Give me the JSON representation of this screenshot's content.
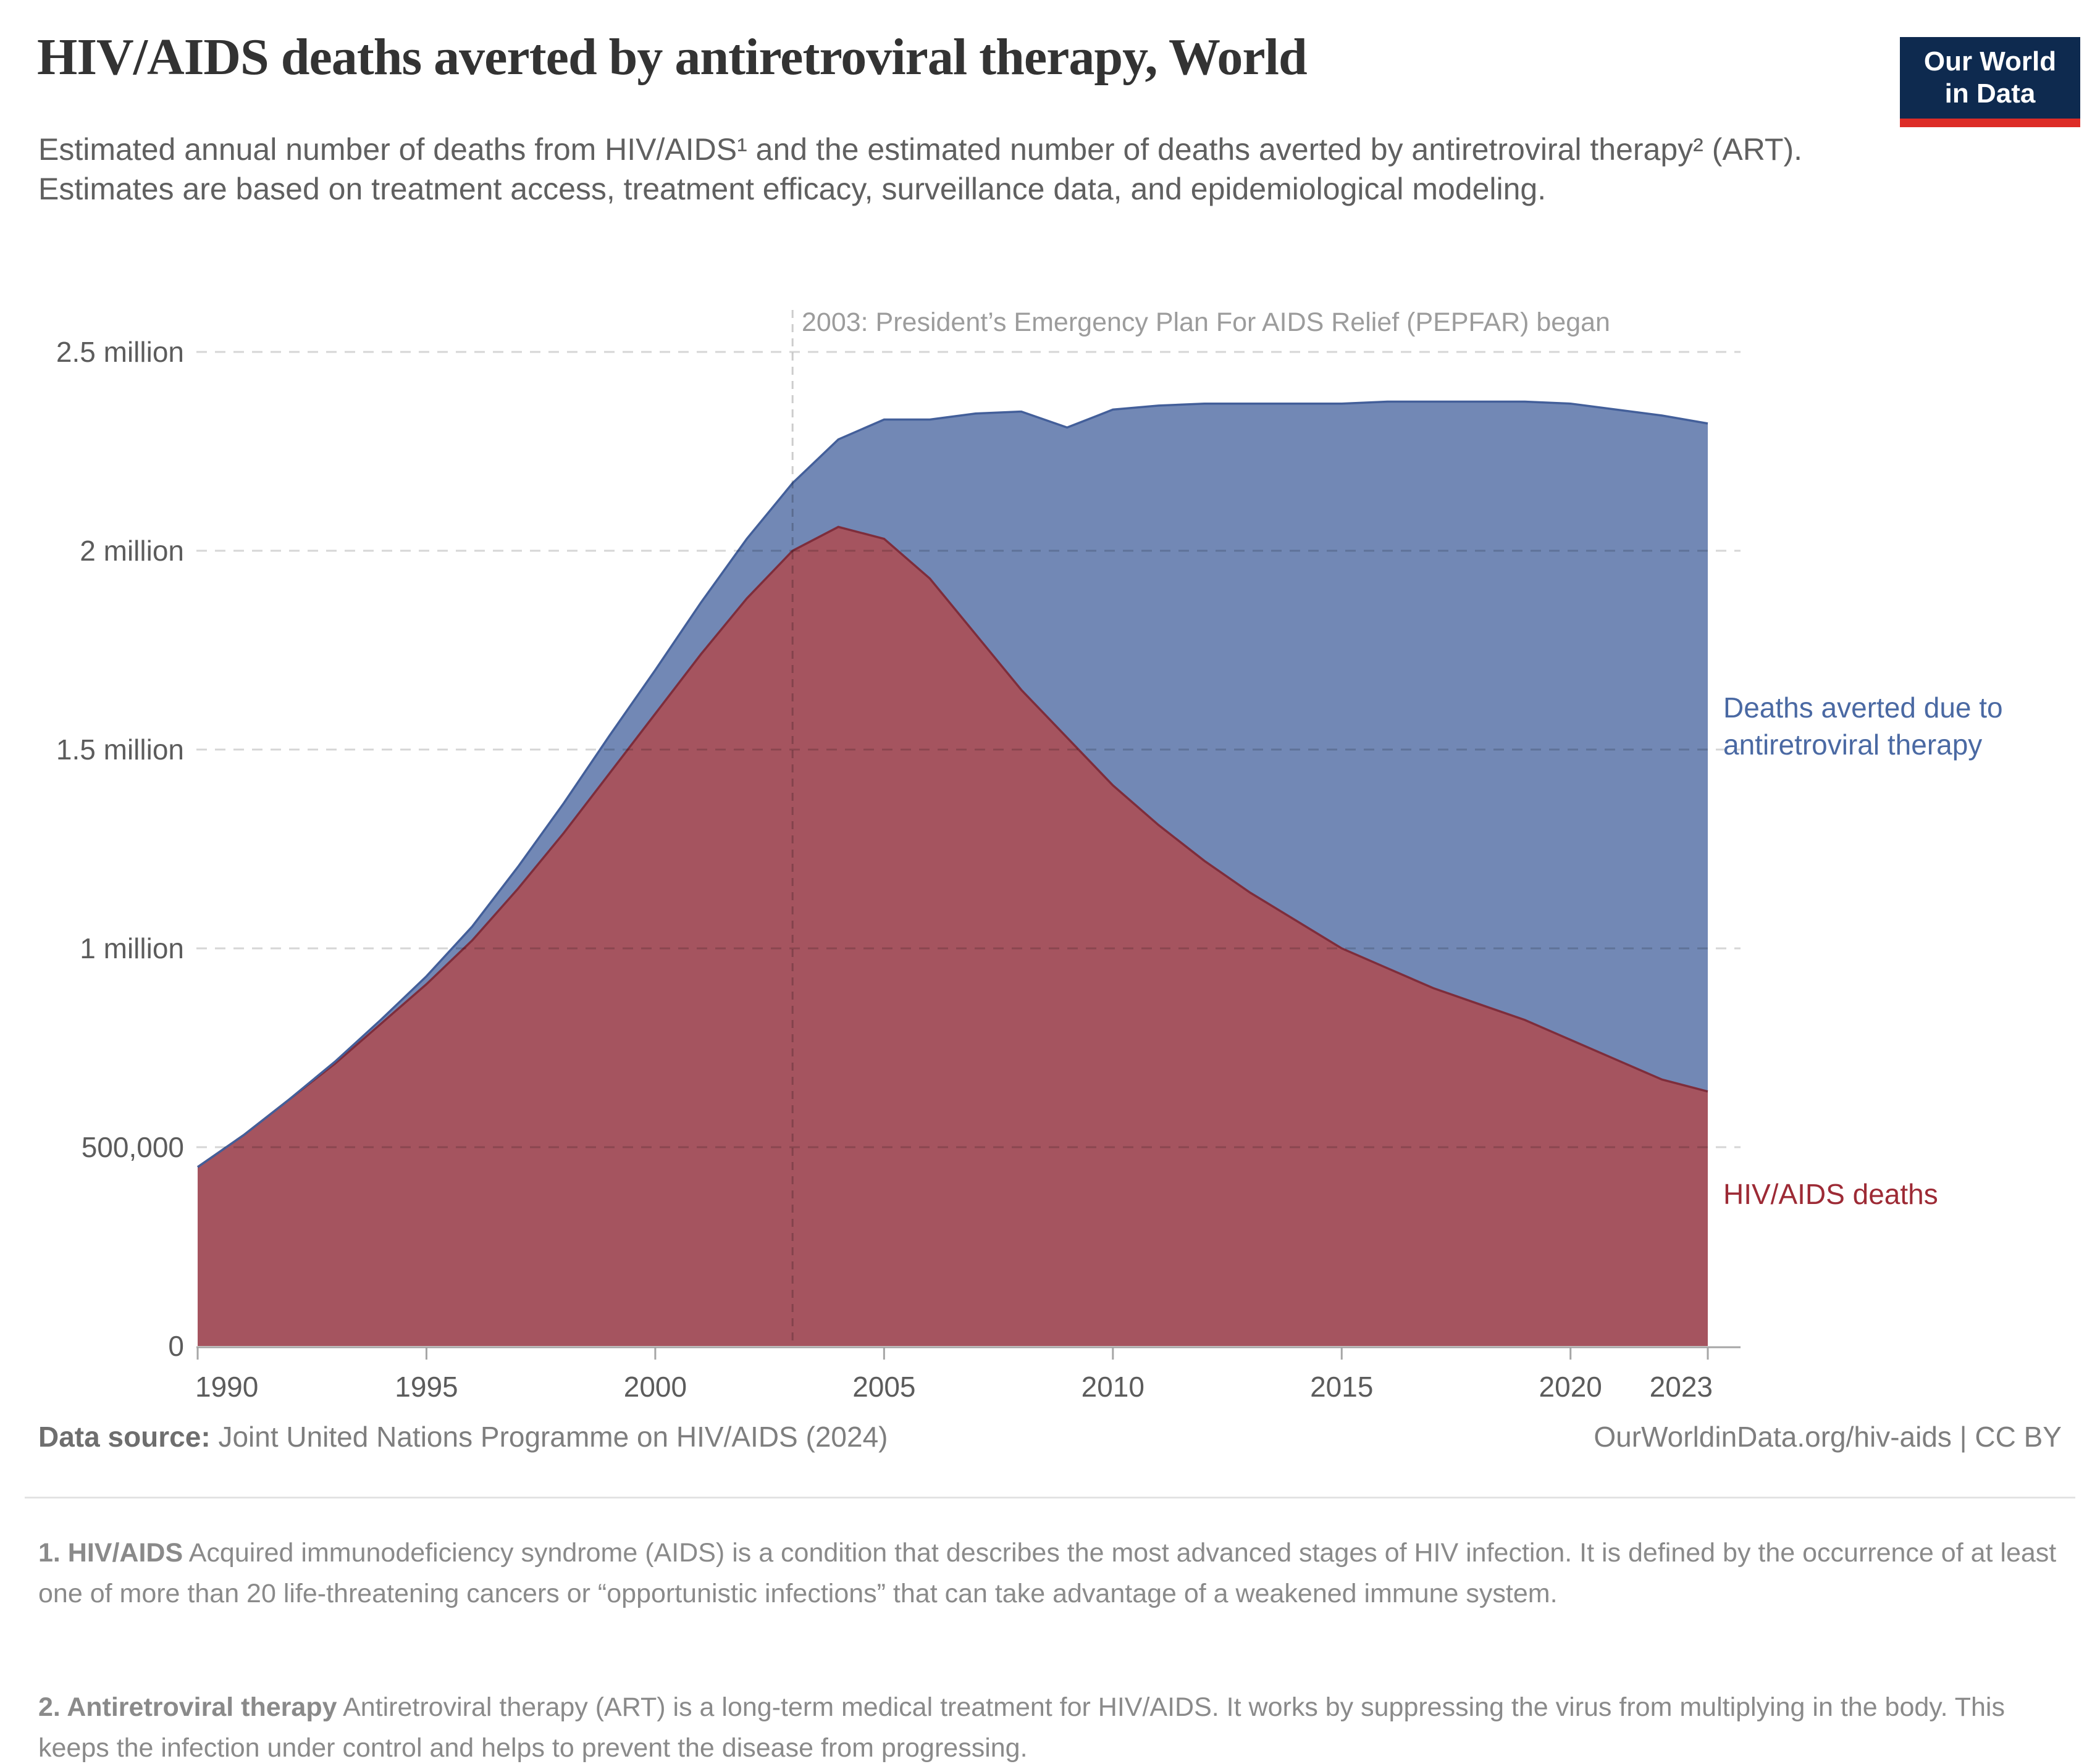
{
  "header": {
    "title": "HIV/AIDS deaths averted by antiretroviral therapy, World",
    "subtitle": "Estimated annual number of deaths from HIV/AIDS¹ and the estimated number of deaths averted by antiretroviral therapy² (ART). Estimates are based on treatment access, treatment efficacy, surveillance data, and epidemiological modeling.",
    "logo": {
      "line1": "Our World",
      "line2": "in Data"
    }
  },
  "chart_data": {
    "type": "area",
    "stacked": true,
    "unit": "deaths per year (values in thousands)",
    "x": [
      1990,
      1991,
      1992,
      1993,
      1994,
      1995,
      1996,
      1997,
      1998,
      1999,
      2000,
      2001,
      2002,
      2003,
      2004,
      2005,
      2006,
      2007,
      2008,
      2009,
      2010,
      2011,
      2012,
      2013,
      2014,
      2015,
      2016,
      2017,
      2018,
      2019,
      2020,
      2021,
      2022,
      2023
    ],
    "series": [
      {
        "name": "HIV/AIDS deaths",
        "fill": "#A5545F",
        "stroke": "#7E2D3B",
        "label_color": "#9D2A35",
        "values": [
          450,
          530,
          620,
          710,
          810,
          910,
          1020,
          1150,
          1290,
          1440,
          1590,
          1740,
          1880,
          2000,
          2060,
          2030,
          1930,
          1790,
          1650,
          1530,
          1410,
          1310,
          1220,
          1140,
          1070,
          1000,
          950,
          900,
          860,
          820,
          770,
          720,
          670,
          640
        ]
      },
      {
        "name": "Deaths averted due to antiretroviral therapy",
        "fill": "#7288B5",
        "stroke": "#435F9A",
        "label_color": "#4A69A3",
        "values": [
          0,
          0,
          0,
          5,
          10,
          20,
          35,
          55,
          75,
          95,
          110,
          130,
          150,
          170,
          220,
          300,
          400,
          555,
          700,
          780,
          945,
          1055,
          1150,
          1230,
          1300,
          1370,
          1425,
          1475,
          1515,
          1555,
          1600,
          1635,
          1670,
          1680
        ]
      }
    ],
    "ylim": [
      0,
      2500
    ],
    "yticks": [
      {
        "value": 0,
        "label": "0"
      },
      {
        "value": 500,
        "label": "500,000"
      },
      {
        "value": 1000,
        "label": "1 million"
      },
      {
        "value": 1500,
        "label": "1.5 million"
      },
      {
        "value": 2000,
        "label": "2 million"
      },
      {
        "value": 2500,
        "label": "2.5 million"
      }
    ],
    "xticks": [
      1990,
      1995,
      2000,
      2005,
      2010,
      2015,
      2020,
      2023
    ],
    "grid": "on",
    "legend_position": "right-of-areas",
    "annotation": {
      "year": 2003,
      "label": "2003: President’s Emergency Plan For AIDS Relief (PEPFAR) began"
    }
  },
  "footer": {
    "datasource_label": "Data source:",
    "datasource": "Joint United Nations Programme on HIV/AIDS (2024)",
    "link": "OurWorldinData.org/hiv-aids | CC BY"
  },
  "footnotes": [
    {
      "lead": "1. HIV/AIDS",
      "text": " Acquired immunodeficiency syndrome (AIDS) is a condition that describes the most advanced stages of HIV infection. It is defined by the occurrence of at least one of more than 20 life-threatening cancers or “opportunistic infections” that can take advantage of a weakened immune system."
    },
    {
      "lead": "2. Antiretroviral therapy",
      "text": " Antiretroviral therapy (ART) is a long-term medical treatment for HIV/AIDS. It works by suppressing the virus from multiplying in the body. This keeps the infection under control and helps to prevent the disease from progressing."
    }
  ]
}
